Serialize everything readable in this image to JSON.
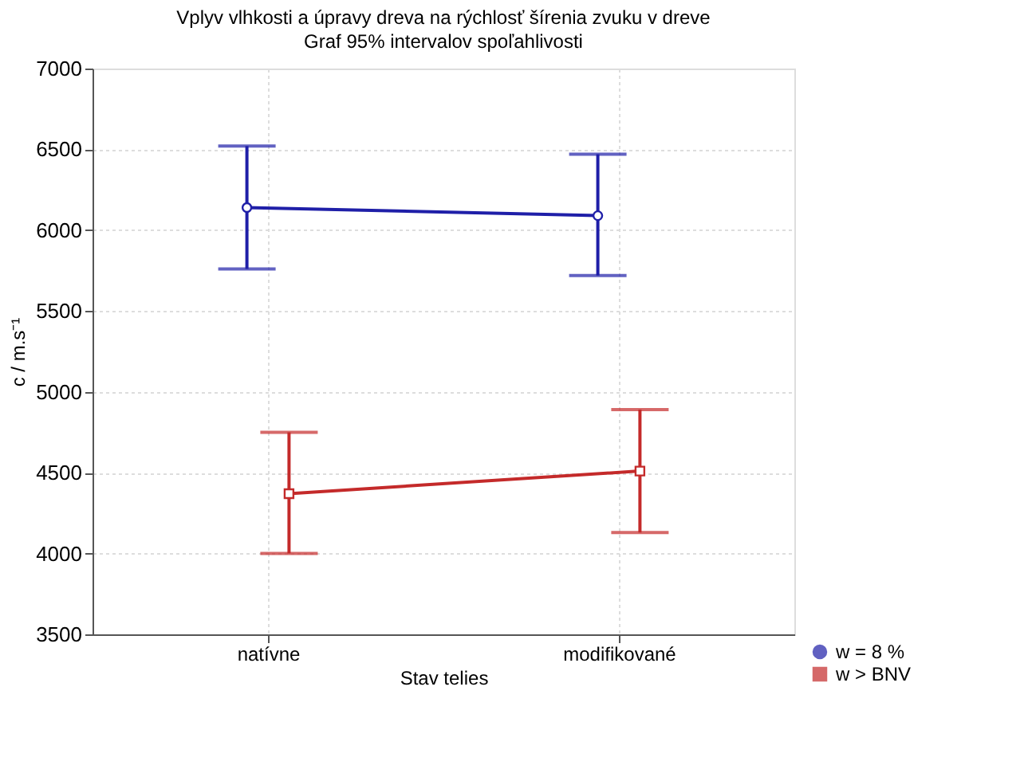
{
  "chart_data": {
    "type": "line",
    "title": "Vplyv vlhkosti a úpravy dreva na rýchlosť šírenia zvuku v dreve",
    "subtitle": "Graf 95% intervalov spoľahlivosti",
    "xlabel": "Stav telies",
    "ylabel": "c / m.s⁻¹",
    "categories": [
      "natívne",
      "modifikované"
    ],
    "series": [
      {
        "name": "w = 8 %",
        "color": "#1f1fa8",
        "marker": "circle",
        "values": [
          6140,
          6090
        ],
        "errors": [
          [
            5760,
            6520
          ],
          [
            5720,
            6470
          ]
        ]
      },
      {
        "name": "w > BNV",
        "color": "#c42a2a",
        "marker": "square",
        "values": [
          4370,
          4510
        ],
        "errors": [
          [
            4000,
            4750
          ],
          [
            4130,
            4890
          ]
        ]
      }
    ],
    "ylim": [
      3500,
      7000
    ],
    "yticks": [
      3500,
      4000,
      4500,
      5000,
      5500,
      6000,
      6500,
      7000
    ],
    "grid": true,
    "legend": "bottom right"
  }
}
